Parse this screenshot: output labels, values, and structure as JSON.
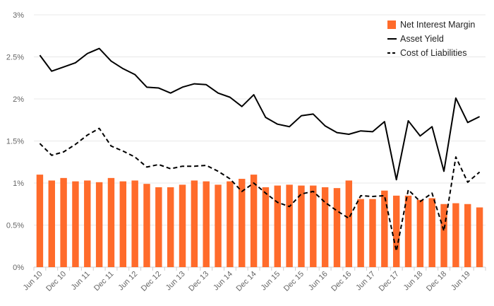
{
  "chart_data": {
    "type": "bar+line",
    "title": "",
    "xlabel": "",
    "ylabel": "",
    "ylim": [
      0,
      3
    ],
    "y_ticks": [
      "0%",
      "0.5%",
      "1%",
      "1.5%",
      "2%",
      "2.5%",
      "3%"
    ],
    "y_tick_values": [
      0,
      0.5,
      1,
      1.5,
      2,
      2.5,
      3
    ],
    "grid": "horizontal",
    "legend_position": "top-right",
    "x": [
      "Jun 10",
      "Sep 10",
      "Dec 10",
      "Mar 11",
      "Jun 11",
      "Sep 11",
      "Dec 11",
      "Mar 12",
      "Jun 12",
      "Sep 12",
      "Dec 12",
      "Mar 13",
      "Jun 13",
      "Sep 13",
      "Dec 13",
      "Mar 14",
      "Jun 14",
      "Sep 14",
      "Dec 14",
      "Mar 15",
      "Jun 15",
      "Sep 15",
      "Dec 15",
      "Mar 16",
      "Jun 16",
      "Sep 16",
      "Dec 16",
      "Mar 17",
      "Jun 17",
      "Sep 17",
      "Dec 17",
      "Mar 18",
      "Jun 18",
      "Sep 18",
      "Dec 18",
      "Mar 19",
      "Jun 19",
      "Sep 19"
    ],
    "x_tick_labels": [
      "Jun 10",
      "Dec 10",
      "Jun 11",
      "Dec 11",
      "Jun 12",
      "Dec 12",
      "Jun 13",
      "Dec 13",
      "Jun 14",
      "Dec 14",
      "Jun 15",
      "Dec 15",
      "Jun 16",
      "Dec 16",
      "Jun 17",
      "Dec 17",
      "Jun 18",
      "Dec 18",
      "Jun 19"
    ],
    "series": [
      {
        "name": "Net Interest Margin",
        "type": "bar",
        "color": "#ff6b2b",
        "values": [
          1.1,
          1.03,
          1.06,
          1.02,
          1.03,
          1.01,
          1.06,
          1.02,
          1.03,
          0.99,
          0.95,
          0.95,
          0.98,
          1.03,
          1.02,
          0.98,
          1.02,
          1.05,
          1.1,
          0.95,
          0.97,
          0.98,
          0.97,
          0.97,
          0.95,
          0.94,
          1.03,
          0.81,
          0.81,
          0.91,
          0.85,
          0.85,
          0.8,
          0.82,
          0.75,
          0.76,
          0.75,
          0.71
        ]
      },
      {
        "name": "Asset Yield",
        "type": "line",
        "style": "solid",
        "color": "#000000",
        "values": [
          2.52,
          2.33,
          2.38,
          2.43,
          2.54,
          2.6,
          2.45,
          2.36,
          2.29,
          2.14,
          2.13,
          2.07,
          2.14,
          2.18,
          2.17,
          2.07,
          2.02,
          1.91,
          2.05,
          1.78,
          1.7,
          1.67,
          1.8,
          1.82,
          1.68,
          1.6,
          1.58,
          1.62,
          1.61,
          1.73,
          1.04,
          1.74,
          1.56,
          1.67,
          1.14,
          2.01,
          1.72,
          1.79
        ]
      },
      {
        "name": "Cost of Liabilities",
        "type": "line",
        "style": "dashed",
        "color": "#000000",
        "values": [
          1.47,
          1.33,
          1.37,
          1.46,
          1.57,
          1.65,
          1.44,
          1.38,
          1.31,
          1.19,
          1.22,
          1.17,
          1.2,
          1.2,
          1.21,
          1.14,
          1.05,
          0.9,
          1.0,
          0.88,
          0.77,
          0.72,
          0.87,
          0.9,
          0.77,
          0.67,
          0.58,
          0.85,
          0.84,
          0.85,
          0.19,
          0.92,
          0.78,
          0.88,
          0.43,
          1.31,
          1.01,
          1.13
        ]
      }
    ]
  }
}
